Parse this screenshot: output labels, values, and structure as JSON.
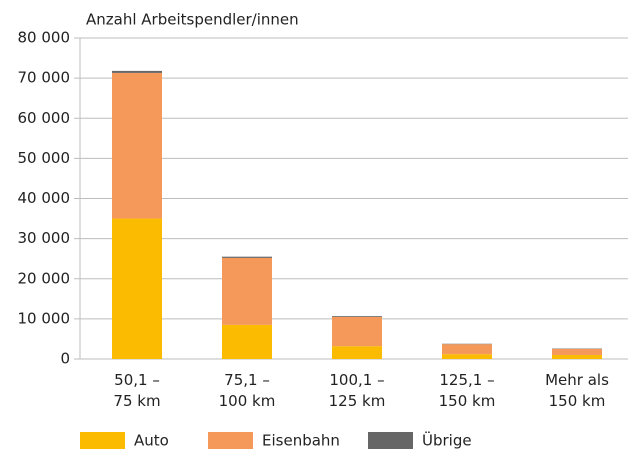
{
  "chart_data": {
    "type": "bar",
    "stacked": true,
    "y_label": "Anzahl Arbeitspendler/innen",
    "categories": [
      "50,1 –\n75 km",
      "75,1 –\n100 km",
      "100,1 –\n125 km",
      "125,1 –\n150 km",
      "Mehr als\n150 km"
    ],
    "series": [
      {
        "name": "Auto",
        "color": "#fbbb00",
        "values": [
          35000,
          8500,
          3200,
          1200,
          1000
        ]
      },
      {
        "name": "Eisenbahn",
        "color": "#f4995a",
        "values": [
          36300,
          16700,
          7300,
          2500,
          1500
        ]
      },
      {
        "name": "Übrige",
        "color": "#666666",
        "values": [
          500,
          300,
          200,
          100,
          100
        ]
      }
    ],
    "ylim": [
      0,
      80000
    ],
    "yticks": [
      0,
      {
        "value": 10000,
        "label": "10 000"
      },
      {
        "value": 20000,
        "label": "20 000"
      },
      {
        "value": 30000,
        "label": "30 000"
      },
      {
        "value": 40000,
        "label": "40 000"
      },
      {
        "value": 50000,
        "label": "50 000"
      },
      {
        "value": 60000,
        "label": "60 000"
      },
      {
        "value": 70000,
        "label": "70 000"
      },
      {
        "value": 80000,
        "label": "80 000"
      }
    ],
    "grid": true,
    "legend": "bottom"
  }
}
